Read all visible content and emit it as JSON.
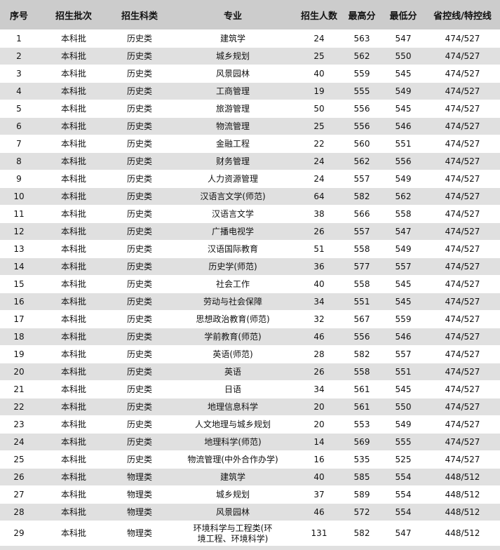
{
  "headers": [
    "序号",
    "招生批次",
    "招生科类",
    "专业",
    "招生人数",
    "最高分",
    "最低分",
    "省控线/特控线"
  ],
  "rows": [
    [
      "1",
      "本科批",
      "历史类",
      "建筑学",
      "24",
      "563",
      "547",
      "474/527"
    ],
    [
      "2",
      "本科批",
      "历史类",
      "城乡规划",
      "25",
      "562",
      "550",
      "474/527"
    ],
    [
      "3",
      "本科批",
      "历史类",
      "风景园林",
      "40",
      "559",
      "545",
      "474/527"
    ],
    [
      "4",
      "本科批",
      "历史类",
      "工商管理",
      "19",
      "555",
      "549",
      "474/527"
    ],
    [
      "5",
      "本科批",
      "历史类",
      "旅游管理",
      "50",
      "556",
      "545",
      "474/527"
    ],
    [
      "6",
      "本科批",
      "历史类",
      "物流管理",
      "25",
      "556",
      "546",
      "474/527"
    ],
    [
      "7",
      "本科批",
      "历史类",
      "金融工程",
      "22",
      "560",
      "551",
      "474/527"
    ],
    [
      "8",
      "本科批",
      "历史类",
      "财务管理",
      "24",
      "562",
      "556",
      "474/527"
    ],
    [
      "9",
      "本科批",
      "历史类",
      "人力资源管理",
      "24",
      "557",
      "549",
      "474/527"
    ],
    [
      "10",
      "本科批",
      "历史类",
      "汉语言文学(师范)",
      "64",
      "582",
      "562",
      "474/527"
    ],
    [
      "11",
      "本科批",
      "历史类",
      "汉语言文学",
      "38",
      "566",
      "558",
      "474/527"
    ],
    [
      "12",
      "本科批",
      "历史类",
      "广播电视学",
      "26",
      "557",
      "547",
      "474/527"
    ],
    [
      "13",
      "本科批",
      "历史类",
      "汉语国际教育",
      "51",
      "558",
      "549",
      "474/527"
    ],
    [
      "14",
      "本科批",
      "历史类",
      "历史学(师范)",
      "36",
      "577",
      "557",
      "474/527"
    ],
    [
      "15",
      "本科批",
      "历史类",
      "社会工作",
      "40",
      "558",
      "545",
      "474/527"
    ],
    [
      "16",
      "本科批",
      "历史类",
      "劳动与社会保障",
      "34",
      "551",
      "545",
      "474/527"
    ],
    [
      "17",
      "本科批",
      "历史类",
      "思想政治教育(师范)",
      "32",
      "567",
      "559",
      "474/527"
    ],
    [
      "18",
      "本科批",
      "历史类",
      "学前教育(师范)",
      "46",
      "556",
      "546",
      "474/527"
    ],
    [
      "19",
      "本科批",
      "历史类",
      "英语(师范)",
      "28",
      "582",
      "557",
      "474/527"
    ],
    [
      "20",
      "本科批",
      "历史类",
      "英语",
      "26",
      "558",
      "551",
      "474/527"
    ],
    [
      "21",
      "本科批",
      "历史类",
      "日语",
      "34",
      "561",
      "545",
      "474/527"
    ],
    [
      "22",
      "本科批",
      "历史类",
      "地理信息科学",
      "20",
      "561",
      "550",
      "474/527"
    ],
    [
      "23",
      "本科批",
      "历史类",
      "人文地理与城乡规划",
      "20",
      "553",
      "549",
      "474/527"
    ],
    [
      "24",
      "本科批",
      "历史类",
      "地理科学(师范)",
      "14",
      "569",
      "555",
      "474/527"
    ],
    [
      "25",
      "本科批",
      "历史类",
      "物流管理(中外合作办学)",
      "16",
      "535",
      "525",
      "474/527"
    ],
    [
      "26",
      "本科批",
      "物理类",
      "建筑学",
      "40",
      "585",
      "554",
      "448/512"
    ],
    [
      "27",
      "本科批",
      "物理类",
      "城乡规划",
      "37",
      "589",
      "554",
      "448/512"
    ],
    [
      "28",
      "本科批",
      "物理类",
      "风景园林",
      "46",
      "572",
      "554",
      "448/512"
    ],
    [
      "29",
      "本科批",
      "物理类",
      "环境科学与工程类(环境工程、环境科学)",
      "131",
      "582",
      "547",
      "448/512"
    ]
  ]
}
